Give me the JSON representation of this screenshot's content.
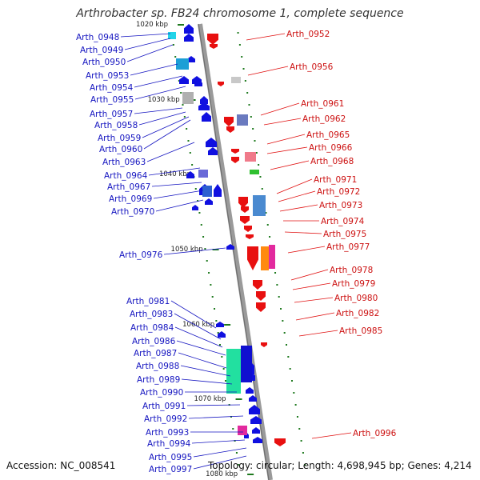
{
  "title": "Arthrobacter sp. FB24 chromosome 1, complete sequence",
  "footer": {
    "accession": "Accession: NC_008541",
    "topology": "Topology: circular; Length: 4,698,945 bp; Genes: 4,214"
  },
  "colors": {
    "left_strand_genes": "#1010e0",
    "right_strand_genes": "#e81010",
    "left_labels": "#1515c0",
    "right_labels": "#cc1010",
    "backbone": "#888888",
    "tick_marks": "#1f7a1f"
  },
  "ticks": [
    "1020 kbp",
    "1030 kbp",
    "1040 kbp",
    "1050 kbp",
    "1060 kbp",
    "1070 kbp",
    "1080 kbp"
  ],
  "left_genes": [
    "Arth_0948",
    "Arth_0949",
    "Arth_0950",
    "Arth_0953",
    "Arth_0954",
    "Arth_0955",
    "Arth_0957",
    "Arth_0958",
    "Arth_0959",
    "Arth_0960",
    "Arth_0963",
    "Arth_0964",
    "Arth_0967",
    "Arth_0969",
    "Arth_0970",
    "Arth_0976",
    "Arth_0981",
    "Arth_0983",
    "Arth_0984",
    "Arth_0986",
    "Arth_0987",
    "Arth_0988",
    "Arth_0989",
    "Arth_0990",
    "Arth_0991",
    "Arth_0992",
    "Arth_0993",
    "Arth_0994",
    "Arth_0995",
    "Arth_0997"
  ],
  "right_genes": [
    "Arth_0952",
    "Arth_0956",
    "Arth_0961",
    "Arth_0962",
    "Arth_0965",
    "Arth_0966",
    "Arth_0968",
    "Arth_0971",
    "Arth_0972",
    "Arth_0973",
    "Arth_0974",
    "Arth_0975",
    "Arth_0977",
    "Arth_0978",
    "Arth_0979",
    "Arth_0980",
    "Arth_0982",
    "Arth_0985",
    "Arth_0996"
  ]
}
